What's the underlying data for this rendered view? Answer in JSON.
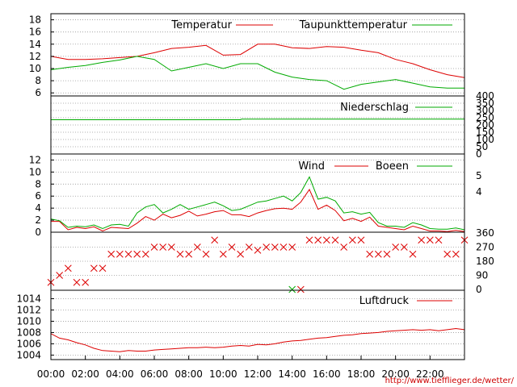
{
  "credit": "http://www.tiefflieger.de/wetter/",
  "x_time_labels": [
    "00:00",
    "02:00",
    "04:00",
    "06:00",
    "08:00",
    "10:00",
    "12:00",
    "14:00",
    "16:00",
    "18:00",
    "20:00",
    "22:00"
  ],
  "colors": {
    "red": "#dd0000",
    "green": "#00aa00",
    "grid": "#999999"
  },
  "chart_data": [
    {
      "type": "line",
      "x_hours": [
        0,
        1,
        2,
        3,
        4,
        5,
        6,
        7,
        8,
        9,
        10,
        11,
        12,
        13,
        14,
        15,
        16,
        17,
        18,
        19,
        20,
        21,
        22,
        23,
        24
      ],
      "ylim": [
        5.5,
        19
      ],
      "yticks": [
        "6",
        "8",
        "10",
        "12",
        "14",
        "16",
        "18"
      ],
      "grid": true,
      "legend_position": "top",
      "series": [
        {
          "name": "Temperatur",
          "color": "#dd0000",
          "values": [
            12.0,
            11.5,
            11.5,
            11.6,
            11.8,
            12.0,
            12.6,
            13.3,
            13.5,
            13.8,
            12.2,
            12.3,
            14.0,
            14.0,
            13.4,
            13.3,
            13.6,
            13.5,
            13.0,
            12.6,
            11.5,
            10.8,
            9.8,
            9.0,
            8.5
          ]
        },
        {
          "name": "Taupunkttemperatur",
          "color": "#00aa00",
          "values": [
            9.8,
            10.2,
            10.5,
            11.0,
            11.4,
            12.0,
            11.5,
            9.6,
            10.2,
            10.8,
            10.0,
            10.8,
            10.8,
            9.4,
            8.6,
            8.2,
            8.0,
            6.6,
            7.4,
            7.8,
            8.2,
            7.6,
            7.0,
            6.8,
            6.8
          ]
        }
      ]
    },
    {
      "type": "line",
      "x_hours": [
        0,
        11,
        11.05,
        24
      ],
      "ylim": [
        0,
        400
      ],
      "yticks": [
        "0",
        "50",
        "100",
        "150",
        "200",
        "250",
        "300",
        "350",
        "400"
      ],
      "grid": true,
      "legend_position": "top-right",
      "series": [
        {
          "name": "Niederschlag",
          "color": "#00aa00",
          "values": [
            236,
            236,
            240,
            240
          ]
        }
      ]
    },
    {
      "type": "line",
      "x_hours": [
        0,
        0.5,
        1,
        1.5,
        2,
        2.5,
        3,
        3.5,
        4,
        4.5,
        5,
        5.5,
        6,
        6.5,
        7,
        7.5,
        8,
        8.5,
        9,
        9.5,
        10,
        10.5,
        11,
        11.5,
        12,
        12.5,
        13,
        13.5,
        14,
        14.5,
        15,
        15.5,
        16,
        16.5,
        17,
        17.5,
        18,
        18.5,
        19,
        19.5,
        20,
        20.5,
        21,
        21.5,
        22,
        22.5,
        23,
        23.5,
        24
      ],
      "ylim": [
        0,
        13
      ],
      "yticks": [
        "0",
        "2",
        "4",
        "6",
        "8",
        "10",
        "12"
      ],
      "right_labels": [
        "4",
        "5"
      ],
      "grid": true,
      "legend_position": "top-right",
      "series": [
        {
          "name": "Wind",
          "color": "#dd0000",
          "values": [
            1.8,
            1.8,
            0.4,
            0.8,
            0.6,
            0.9,
            0.2,
            0.8,
            0.7,
            0.6,
            1.5,
            2.6,
            2.0,
            3.0,
            2.4,
            2.8,
            3.5,
            2.7,
            3.0,
            3.4,
            3.6,
            2.9,
            2.9,
            2.6,
            3.2,
            3.6,
            3.9,
            4.0,
            3.8,
            5.0,
            7.1,
            3.8,
            4.5,
            3.6,
            1.9,
            2.3,
            1.8,
            2.5,
            1.0,
            0.8,
            0.6,
            0.4,
            1.0,
            0.6,
            0.2,
            0.2,
            0.1,
            0.3,
            0.1
          ]
        },
        {
          "name": "Boeen",
          "color": "#00aa00",
          "values": [
            2.2,
            1.9,
            0.8,
            1.0,
            0.9,
            1.2,
            0.6,
            1.2,
            1.3,
            1.0,
            3.2,
            4.2,
            4.6,
            3.2,
            3.8,
            4.6,
            3.8,
            4.2,
            4.6,
            5.0,
            4.4,
            3.6,
            3.8,
            4.4,
            5.0,
            5.2,
            5.6,
            6.0,
            5.2,
            6.6,
            9.2,
            5.5,
            5.8,
            5.2,
            3.2,
            3.4,
            3.0,
            3.3,
            1.6,
            1.0,
            1.0,
            0.8,
            1.6,
            1.2,
            0.6,
            0.5,
            0.5,
            0.7,
            0.4
          ]
        }
      ]
    },
    {
      "type": "scatter",
      "ylim": [
        0,
        360
      ],
      "right_labels": [
        "0",
        "90",
        "180",
        "270",
        "360"
      ],
      "grid": true,
      "series": [
        {
          "name": "",
          "color": "#dd0000",
          "x": [
            0,
            0.5,
            1,
            1.5,
            2,
            2.5,
            3,
            3.5,
            4,
            4.5,
            5,
            5.5,
            6,
            6.5,
            7,
            7.5,
            8,
            8.5,
            9,
            9.5,
            10,
            10.5,
            11,
            11.5,
            12,
            12.5,
            13,
            13.5,
            14,
            14.5,
            15,
            15.5,
            16,
            16.5,
            17,
            17.5,
            18,
            18.5,
            19,
            19.5,
            20,
            20.5,
            21,
            21.5,
            22,
            22.5,
            23,
            23.5,
            24
          ],
          "y": [
            45,
            90,
            135,
            45,
            45,
            135,
            135,
            225,
            225,
            225,
            225,
            225,
            270,
            270,
            270,
            225,
            225,
            270,
            225,
            315,
            225,
            270,
            225,
            270,
            250,
            270,
            270,
            270,
            270,
            0,
            315,
            315,
            315,
            315,
            270,
            315,
            315,
            225,
            225,
            225,
            270,
            270,
            225,
            315,
            315,
            315,
            225,
            225,
            315
          ]
        },
        {
          "name": "",
          "color": "#00aa00",
          "x": [
            14
          ],
          "y": [
            0
          ]
        }
      ]
    },
    {
      "type": "line",
      "x_hours": [
        0,
        0.5,
        1,
        1.5,
        2,
        2.5,
        3,
        3.5,
        4,
        4.5,
        5,
        5.5,
        6,
        6.5,
        7,
        7.5,
        8,
        8.5,
        9,
        9.5,
        10,
        10.5,
        11,
        11.5,
        12,
        12.5,
        13,
        13.5,
        14,
        14.5,
        15,
        15.5,
        16,
        16.5,
        17,
        17.5,
        18,
        18.5,
        19,
        19.5,
        20,
        20.5,
        21,
        21.5,
        22,
        22.5,
        23,
        23.5,
        24
      ],
      "ylim": [
        1003.2,
        1015.5
      ],
      "yticks": [
        "1004",
        "1006",
        "1008",
        "1010",
        "1012",
        "1014"
      ],
      "grid": true,
      "legend_position": "top-right",
      "series": [
        {
          "name": "Luftdruck",
          "color": "#dd0000",
          "values": [
            1007.8,
            1007.0,
            1006.7,
            1006.2,
            1005.8,
            1005.2,
            1004.8,
            1004.7,
            1004.6,
            1004.8,
            1004.7,
            1004.7,
            1004.9,
            1005.0,
            1005.1,
            1005.2,
            1005.3,
            1005.3,
            1005.4,
            1005.3,
            1005.4,
            1005.6,
            1005.7,
            1005.6,
            1005.9,
            1005.8,
            1006.0,
            1006.3,
            1006.5,
            1006.6,
            1006.8,
            1007.0,
            1007.1,
            1007.3,
            1007.5,
            1007.6,
            1007.8,
            1007.9,
            1008.0,
            1008.2,
            1008.3,
            1008.4,
            1008.5,
            1008.4,
            1008.5,
            1008.3,
            1008.5,
            1008.7,
            1008.5
          ]
        }
      ]
    }
  ]
}
